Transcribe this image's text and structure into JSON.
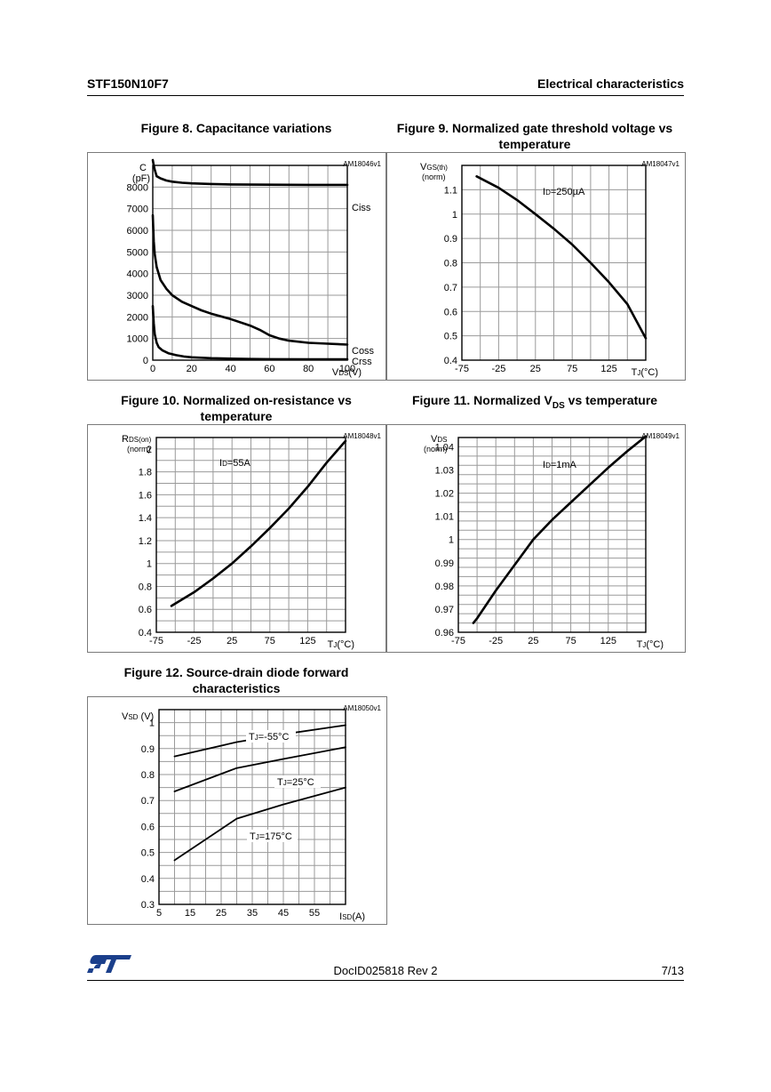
{
  "header": {
    "part_number": "STF150N10F7",
    "section": "Electrical characteristics"
  },
  "footer": {
    "doc_id": "DocID025818 Rev 2",
    "page": "7/13",
    "logo_alt": "ST logo"
  },
  "figures": {
    "fig8": {
      "caption": "Figure 8. Capacitance variations"
    },
    "fig9": {
      "caption_line1": "Figure 9. Normalized gate threshold voltage vs",
      "caption_line2": "temperature"
    },
    "fig10": {
      "caption_line1": "Figure 10. Normalized on-resistance vs",
      "caption_line2": "temperature"
    },
    "fig11": {
      "caption_main": "Figure 11. Normalized V",
      "caption_sub": "DS",
      "caption_tail": " vs temperature"
    },
    "fig12": {
      "caption_line1": "Figure 12. Source-drain diode forward",
      "caption_line2": "characteristics"
    }
  },
  "chart_data": [
    {
      "id": "fig8",
      "type": "line",
      "code": "AM18046v1",
      "ylabel_lines": [
        "C",
        "(pF)"
      ],
      "xlabel_main": "V",
      "xlabel_sub": "DS",
      "xlabel_tail": "(V)",
      "xlim": [
        0,
        100
      ],
      "ylim": [
        0,
        9000
      ],
      "x_ticks": [
        0,
        20,
        40,
        60,
        80,
        100
      ],
      "x_tick_labels": [
        "0",
        "20",
        "40",
        "60",
        "80",
        "100"
      ],
      "y_ticks": [
        0,
        1000,
        2000,
        3000,
        4000,
        5000,
        6000,
        7000,
        8000
      ],
      "y_tick_labels": [
        "0",
        "1000",
        "2000",
        "3000",
        "4000",
        "5000",
        "6000",
        "7000",
        "8000"
      ],
      "series": [
        {
          "name": "Ciss",
          "x": [
            0,
            0.5,
            1,
            2,
            4,
            7,
            10,
            15,
            20,
            30,
            40,
            60,
            80,
            100
          ],
          "values": [
            9700,
            9000,
            8800,
            8500,
            8400,
            8300,
            8250,
            8200,
            8170,
            8140,
            8120,
            8110,
            8100,
            8100
          ]
        },
        {
          "name": "Coss",
          "x": [
            0,
            0.5,
            1,
            2,
            4,
            7,
            10,
            15,
            20,
            25,
            30,
            40,
            50,
            55,
            60,
            65,
            70,
            80,
            90,
            100
          ],
          "values": [
            6700,
            5500,
            4900,
            4300,
            3700,
            3300,
            3000,
            2700,
            2500,
            2300,
            2150,
            1900,
            1600,
            1400,
            1150,
            1000,
            900,
            800,
            760,
            720
          ]
        },
        {
          "name": "Crss",
          "x": [
            0,
            0.5,
            1,
            2,
            3,
            5,
            8,
            12,
            16,
            20,
            30,
            40,
            50,
            60,
            80,
            100
          ],
          "values": [
            2500,
            1700,
            1200,
            800,
            600,
            450,
            320,
            230,
            170,
            130,
            90,
            70,
            55,
            45,
            40,
            35
          ]
        }
      ]
    },
    {
      "id": "fig9",
      "type": "line",
      "code": "AM18047v1",
      "ylabel_main": "V",
      "ylabel_sub": "GS(th)",
      "ylabel_line2": "(norm)",
      "xlabel_main": "T",
      "xlabel_sub": "J",
      "xlabel_tail": "(°C)",
      "annotation_main": "I",
      "annotation_sub": "D",
      "annotation_tail": "=250µA",
      "xlim": [
        -75,
        175
      ],
      "ylim": [
        0.4,
        1.2
      ],
      "x_ticks": [
        -75,
        -25,
        25,
        75,
        125
      ],
      "x_tick_labels": [
        "-75",
        "-25",
        "25",
        "75",
        "125"
      ],
      "y_ticks": [
        0.4,
        0.5,
        0.6,
        0.7,
        0.8,
        0.9,
        1,
        1.1
      ],
      "y_tick_labels": [
        "0.4",
        "0.5",
        "0.6",
        "0.7",
        "0.8",
        "0.9",
        "1",
        "1.1"
      ],
      "series": [
        {
          "name": "VGS(th)",
          "x": [
            -55,
            -25,
            0,
            25,
            50,
            75,
            100,
            125,
            150,
            175
          ],
          "values": [
            1.155,
            1.108,
            1.058,
            1.0,
            0.94,
            0.875,
            0.8,
            0.72,
            0.63,
            0.49
          ]
        }
      ]
    },
    {
      "id": "fig10",
      "type": "line",
      "code": "AM18048v1",
      "ylabel_main": "R",
      "ylabel_sub": "DS(on)",
      "ylabel_line2": "(norm)",
      "xlabel_main": "T",
      "xlabel_sub": "J",
      "xlabel_tail": "(°C)",
      "annotation_main": "I",
      "annotation_sub": "D",
      "annotation_tail": "=55A",
      "xlim": [
        -75,
        175
      ],
      "ylim": [
        0.4,
        2.1
      ],
      "x_ticks": [
        -75,
        -25,
        25,
        75,
        125
      ],
      "x_tick_labels": [
        "-75",
        "-25",
        "25",
        "75",
        "125"
      ],
      "y_ticks": [
        0.4,
        0.6,
        0.8,
        1,
        1.2,
        1.4,
        1.6,
        1.8,
        2
      ],
      "y_tick_labels": [
        "0.4",
        "0.6",
        "0.8",
        "1",
        "1.2",
        "1.4",
        "1.6",
        "1.8",
        "2"
      ],
      "series": [
        {
          "name": "RDS(on)",
          "x": [
            -55,
            -25,
            0,
            25,
            50,
            75,
            100,
            125,
            150,
            175
          ],
          "values": [
            0.63,
            0.75,
            0.87,
            1.0,
            1.15,
            1.31,
            1.48,
            1.67,
            1.88,
            2.07
          ]
        }
      ]
    },
    {
      "id": "fig11",
      "type": "line",
      "code": "AM18049v1",
      "ylabel_main": "V",
      "ylabel_sub": "DS",
      "ylabel_line2": "(norm)",
      "xlabel_main": "T",
      "xlabel_sub": "J",
      "xlabel_tail": "(°C)",
      "annotation_main": "I",
      "annotation_sub": "D",
      "annotation_tail": "=1mA",
      "xlim": [
        -75,
        175
      ],
      "ylim": [
        0.96,
        1.044
      ],
      "x_ticks": [
        -75,
        -25,
        25,
        75,
        125
      ],
      "x_tick_labels": [
        "-75",
        "-25",
        "25",
        "75",
        "125"
      ],
      "y_ticks": [
        0.96,
        0.97,
        0.98,
        0.99,
        1,
        1.01,
        1.02,
        1.03,
        1.04
      ],
      "y_tick_labels": [
        "0.96",
        "0.97",
        "0.98",
        "0.99",
        "1",
        "1.01",
        "1.02",
        "1.03",
        "1.04"
      ],
      "series": [
        {
          "name": "VDS",
          "x": [
            -55,
            -50,
            -25,
            0,
            25,
            50,
            75,
            100,
            125,
            150,
            175
          ],
          "values": [
            0.964,
            0.966,
            0.978,
            0.989,
            1.0,
            1.0085,
            1.016,
            1.0235,
            1.031,
            1.038,
            1.0445
          ]
        }
      ]
    },
    {
      "id": "fig12",
      "type": "line",
      "code": "AM18050v1",
      "ylabel_main": "V",
      "ylabel_sub": "SD",
      "ylabel_tail": " (V)",
      "xlabel_main": "I",
      "xlabel_sub": "SD",
      "xlabel_tail": "(A)",
      "xlim": [
        5,
        65
      ],
      "ylim": [
        0.3,
        1.05
      ],
      "x_ticks": [
        5,
        15,
        25,
        35,
        45,
        55
      ],
      "x_tick_labels": [
        "5",
        "15",
        "25",
        "35",
        "45",
        "55"
      ],
      "y_ticks": [
        0.3,
        0.4,
        0.5,
        0.6,
        0.7,
        0.8,
        0.9,
        1
      ],
      "y_tick_labels": [
        "0.3",
        "0.4",
        "0.5",
        "0.6",
        "0.7",
        "0.8",
        "0.9",
        "1"
      ],
      "series": [
        {
          "name": "TJ=-55°C",
          "label_main": "T",
          "label_sub": "J",
          "label_tail": "=-55°C",
          "x": [
            10,
            30,
            45,
            65
          ],
          "values": [
            0.87,
            0.925,
            0.955,
            0.99
          ]
        },
        {
          "name": "TJ=25°C",
          "label_main": "T",
          "label_sub": "J",
          "label_tail": "=25°C",
          "x": [
            10,
            30,
            45,
            65
          ],
          "values": [
            0.735,
            0.825,
            0.86,
            0.905
          ]
        },
        {
          "name": "TJ=175°C",
          "label_main": "T",
          "label_sub": "J",
          "label_tail": "=175°C",
          "x": [
            10,
            30,
            45,
            65
          ],
          "values": [
            0.47,
            0.63,
            0.685,
            0.75
          ]
        }
      ]
    }
  ]
}
